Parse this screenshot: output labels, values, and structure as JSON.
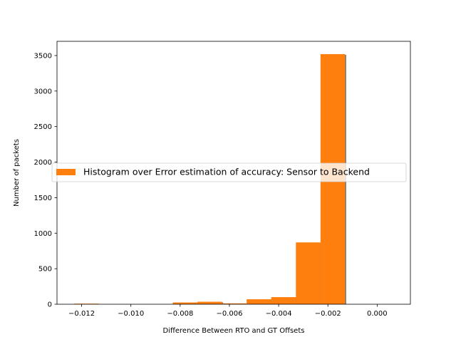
{
  "chart_data": {
    "type": "bar",
    "title": "",
    "xlabel": "Difference Between RTO and GT Offsets",
    "ylabel": "Number of packets",
    "xlim": [
      -0.013,
      0.00135
    ],
    "ylim": [
      0,
      3700
    ],
    "xticks": [
      -0.012,
      -0.01,
      -0.008,
      -0.006,
      -0.004,
      -0.002,
      0.0
    ],
    "xtick_labels": [
      "−0.012",
      "−0.010",
      "−0.008",
      "−0.006",
      "−0.004",
      "−0.002",
      "0.000"
    ],
    "yticks": [
      0,
      500,
      1000,
      1500,
      2000,
      2500,
      3000,
      3500
    ],
    "ytick_labels": [
      "0",
      "500",
      "1000",
      "1500",
      "2000",
      "2500",
      "3000",
      "3500"
    ],
    "legend_position": "center-right",
    "grid": false,
    "series": [
      {
        "name": "Histogram over Error estimation of accuracy: Sensor to Backend",
        "color": "#ff7f0e",
        "shadow_color": "#777777",
        "bins": [
          {
            "x0": -0.0123,
            "x1": -0.0113,
            "value": 8
          },
          {
            "x0": -0.0113,
            "x1": -0.0103,
            "value": 0
          },
          {
            "x0": -0.0103,
            "x1": -0.0093,
            "value": 0
          },
          {
            "x0": -0.0093,
            "x1": -0.0083,
            "value": 0
          },
          {
            "x0": -0.0083,
            "x1": -0.0073,
            "value": 25
          },
          {
            "x0": -0.0073,
            "x1": -0.0063,
            "value": 35
          },
          {
            "x0": -0.0063,
            "x1": -0.0053,
            "value": 12
          },
          {
            "x0": -0.0053,
            "x1": -0.0043,
            "value": 70
          },
          {
            "x0": -0.0043,
            "x1": -0.0033,
            "value": 100
          },
          {
            "x0": -0.0033,
            "x1": -0.0023,
            "value": 870
          },
          {
            "x0": -0.0023,
            "x1": -0.0013,
            "value": 3520
          }
        ]
      }
    ]
  }
}
